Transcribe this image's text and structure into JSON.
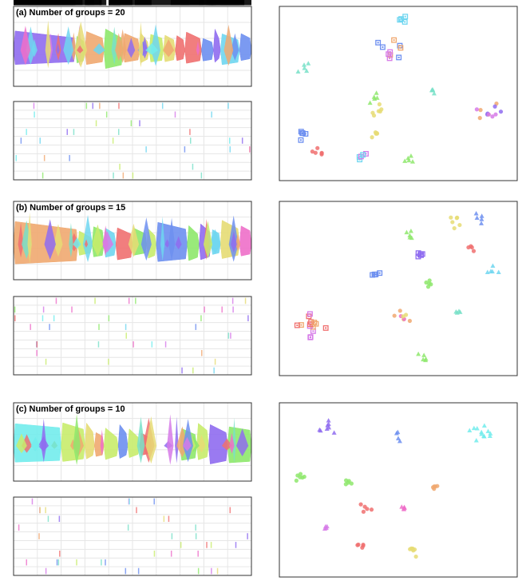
{
  "titles": {
    "a": "(a) Number of groups = 20",
    "b": "(b) Number of groups = 15",
    "c": "(c) Number of groups = 10"
  },
  "palette": {
    "purple": "#8f6cf0",
    "pink": "#ee6fc9",
    "magenta": "#d67ae8",
    "blue": "#6d8ff0",
    "cyan": "#6fd6f0",
    "aqua": "#72ecec",
    "teal": "#78e0c8",
    "green": "#8ee86c",
    "lime": "#c8ec6c",
    "yellow": "#e6dc74",
    "orange": "#f0a870",
    "red": "#f07070"
  }
}
